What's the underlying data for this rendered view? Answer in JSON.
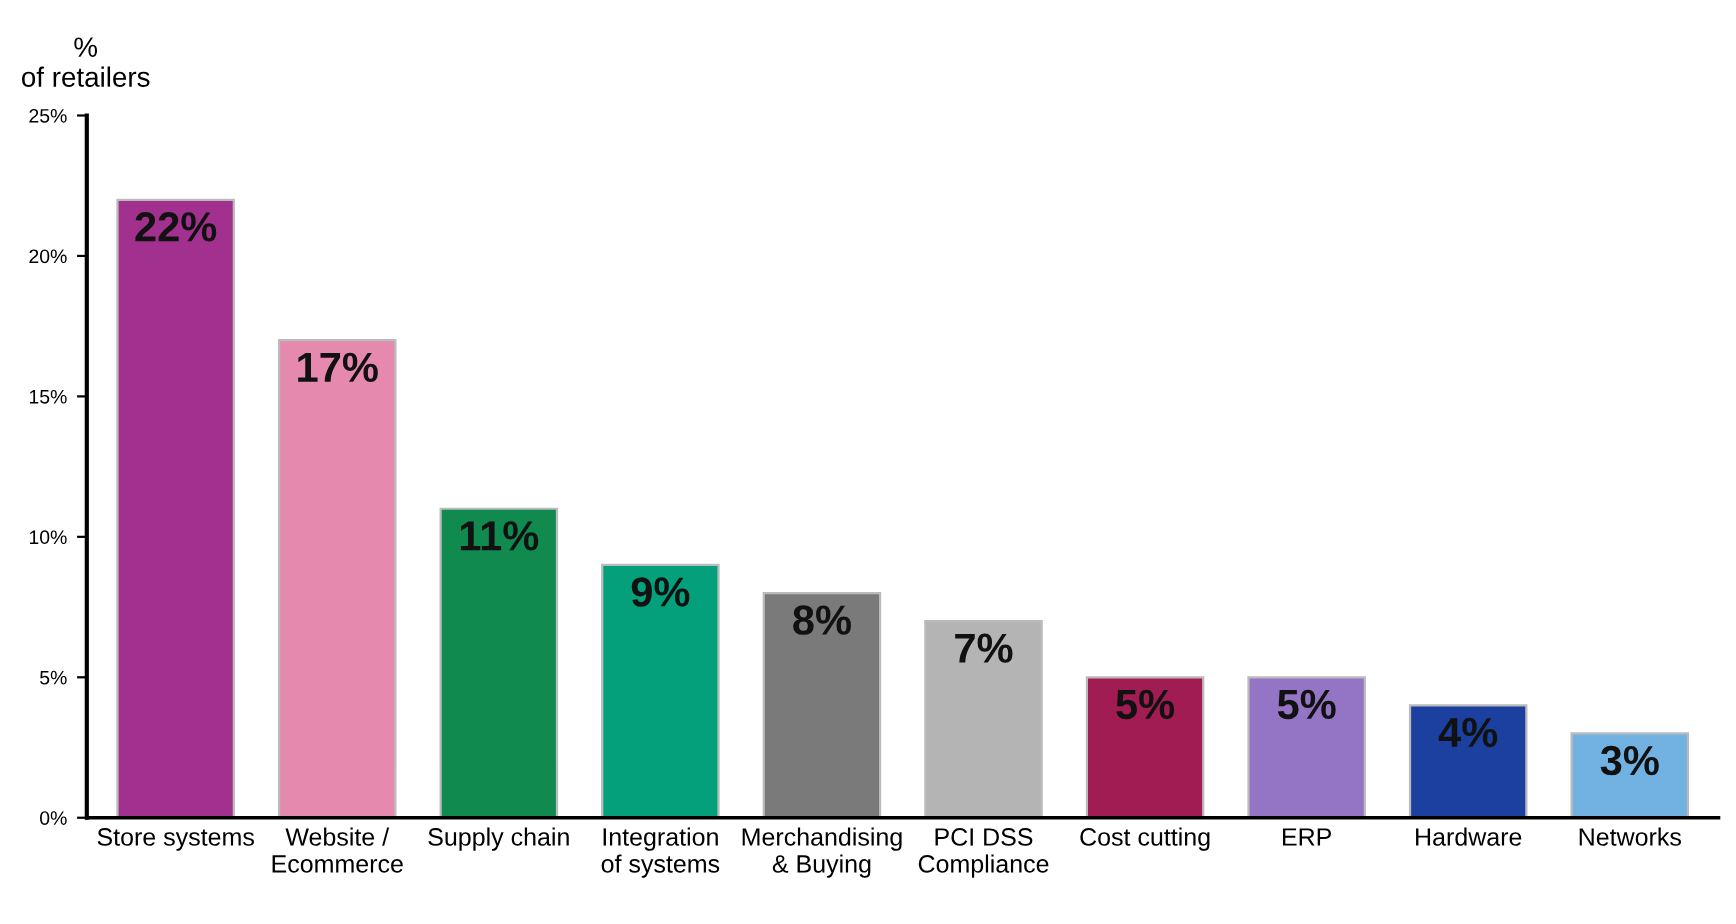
{
  "chart_data": {
    "type": "bar",
    "ylabel": "%\nof retailers",
    "categories": [
      "Store systems",
      "Website /\nEcommerce",
      "Supply chain",
      "Integration\nof systems",
      "Merchandising\n& Buying",
      "PCI DSS\nCompliance",
      "Cost cutting",
      "ERP",
      "Hardware",
      "Networks"
    ],
    "values": [
      22,
      17,
      11,
      9,
      8,
      7,
      5,
      5,
      4,
      3
    ],
    "colors": [
      "#a2308f",
      "#e58aae",
      "#118a50",
      "#04a07c",
      "#7a7a7a",
      "#b4b4b4",
      "#a01c52",
      "#9474c4",
      "#1c40a0",
      "#72b2e2"
    ],
    "value_labels": [
      "22%",
      "17%",
      "11%",
      "9%",
      "8%",
      "7%",
      "5%",
      "5%",
      "4%",
      "3%"
    ],
    "ylim": [
      0,
      25
    ],
    "yticks": [
      {
        "value": 0,
        "label": "0%"
      },
      {
        "value": 5,
        "label": "5%"
      },
      {
        "value": 10,
        "label": "10%"
      },
      {
        "value": 15,
        "label": "15%"
      },
      {
        "value": 20,
        "label": "20%"
      },
      {
        "value": 25,
        "label": "25%"
      }
    ],
    "grid": false,
    "legend": false
  }
}
